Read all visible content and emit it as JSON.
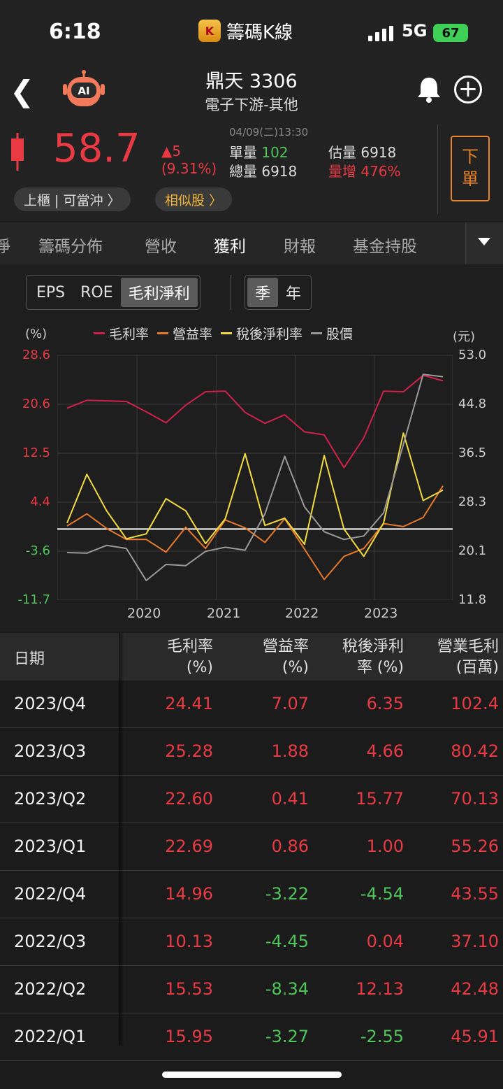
{
  "status_bar": {
    "time": "6:18",
    "app_name": "籌碼K線",
    "app_logo": "K",
    "network": "5G",
    "battery": "67"
  },
  "header": {
    "stock_name": "鼎天 3306",
    "category": "電子下游-其他",
    "ai_label": "AI"
  },
  "quote": {
    "price": "58.7",
    "change": "▲5",
    "change_pct": "(9.31%)",
    "timestamp": "04/09(二)13:30",
    "single_vol_label": "單量",
    "single_vol": "102",
    "total_vol_label": "總量",
    "total_vol": "6918",
    "est_vol_label": "估量",
    "est_vol": "6918",
    "vol_inc_label": "量增",
    "vol_inc": "476%",
    "order_label_1": "下",
    "order_label_2": "單",
    "pill_market": "上櫃 | 可當沖 〉",
    "pill_similar": "相似股 〉"
  },
  "tabs": {
    "partial": "淨",
    "items": [
      "籌碼分佈",
      "營收",
      "獲利",
      "財報",
      "基金持股"
    ],
    "active": "獲利"
  },
  "segment": {
    "metric": [
      "EPS",
      "ROE",
      "毛利淨利"
    ],
    "metric_selected": "毛利淨利",
    "period": [
      "季",
      "年"
    ],
    "period_selected": "季"
  },
  "chart_data": {
    "type": "line",
    "left_unit": "(%)",
    "right_unit": "(元)",
    "left_ticks": [
      "28.6",
      "20.6",
      "12.5",
      "4.4",
      "-3.6",
      "-11.7"
    ],
    "right_ticks": [
      "53.0",
      "44.8",
      "36.5",
      "28.3",
      "20.1",
      "11.8"
    ],
    "x_ticks": [
      "2020",
      "2021",
      "2022",
      "2023"
    ],
    "ylim_left": [
      -11.7,
      28.6
    ],
    "ylim_right": [
      11.8,
      53.0
    ],
    "x": [
      "2019/Q1",
      "2019/Q2",
      "2019/Q3",
      "2019/Q4",
      "2020/Q1",
      "2020/Q2",
      "2020/Q3",
      "2020/Q4",
      "2021/Q1",
      "2021/Q2",
      "2021/Q3",
      "2021/Q4",
      "2022/Q1",
      "2022/Q2",
      "2022/Q3",
      "2022/Q4",
      "2023/Q1",
      "2023/Q2",
      "2023/Q3",
      "2023/Q4"
    ],
    "zero_line": 0,
    "series": [
      {
        "name": "毛利率",
        "color": "#d0214c",
        "axis": "left",
        "values": [
          19.9,
          21.2,
          21.1,
          21.0,
          19.3,
          17.5,
          20.4,
          22.6,
          22.7,
          19.2,
          17.4,
          18.8,
          16.0,
          15.5,
          10.1,
          15.0,
          22.7,
          22.6,
          25.3,
          24.4
        ]
      },
      {
        "name": "營益率",
        "color": "#e8782a",
        "axis": "left",
        "values": [
          0.5,
          2.5,
          0.1,
          -1.7,
          -1.7,
          -3.8,
          0.3,
          -3.2,
          1.5,
          0.2,
          -2.2,
          1.7,
          -3.3,
          -8.3,
          -4.5,
          -3.2,
          0.9,
          0.4,
          1.9,
          7.1
        ]
      },
      {
        "name": "稅後淨利率",
        "color": "#f2dc3e",
        "axis": "left",
        "values": [
          1.0,
          9.0,
          3.0,
          -1.6,
          -0.8,
          5.0,
          3.0,
          -2.4,
          1.7,
          12.4,
          0.6,
          1.8,
          -2.5,
          12.1,
          0.0,
          -4.5,
          1.0,
          15.8,
          4.7,
          6.4
        ]
      },
      {
        "name": "股價",
        "color": "#9a9a9a",
        "axis": "right",
        "values": [
          19.8,
          19.7,
          21.0,
          20.5,
          15.1,
          17.8,
          17.6,
          20.0,
          20.7,
          20.2,
          26.3,
          36.0,
          27.5,
          23.3,
          22.0,
          22.6,
          26.5,
          38.0,
          49.8,
          49.4
        ]
      }
    ]
  },
  "table": {
    "headers": [
      {
        "line1": "日期",
        "line2": ""
      },
      {
        "line1": "毛利率",
        "line2": "(%)"
      },
      {
        "line1": "營益率",
        "line2": "(%)"
      },
      {
        "line1": "稅後淨利",
        "line2": "率 (%)"
      },
      {
        "line1": "營業毛利",
        "line2": "(百萬)"
      }
    ],
    "rows": [
      {
        "date": "2023/Q4",
        "gross": "24.41",
        "op": "7.07",
        "net": "6.35",
        "gp": "102.4"
      },
      {
        "date": "2023/Q3",
        "gross": "25.28",
        "op": "1.88",
        "net": "4.66",
        "gp": "80.42"
      },
      {
        "date": "2023/Q2",
        "gross": "22.60",
        "op": "0.41",
        "net": "15.77",
        "gp": "70.13"
      },
      {
        "date": "2023/Q1",
        "gross": "22.69",
        "op": "0.86",
        "net": "1.00",
        "gp": "55.26"
      },
      {
        "date": "2022/Q4",
        "gross": "14.96",
        "op": "-3.22",
        "net": "-4.54",
        "gp": "43.55"
      },
      {
        "date": "2022/Q3",
        "gross": "10.13",
        "op": "-4.45",
        "net": "0.04",
        "gp": "37.10"
      },
      {
        "date": "2022/Q2",
        "gross": "15.53",
        "op": "-8.34",
        "net": "12.13",
        "gp": "42.48"
      },
      {
        "date": "2022/Q1",
        "gross": "15.95",
        "op": "-3.27",
        "net": "-2.55",
        "gp": "45.91"
      }
    ]
  },
  "colors": {
    "up": "#e93a44",
    "down": "#4fc45a",
    "accent": "#e9842b"
  }
}
